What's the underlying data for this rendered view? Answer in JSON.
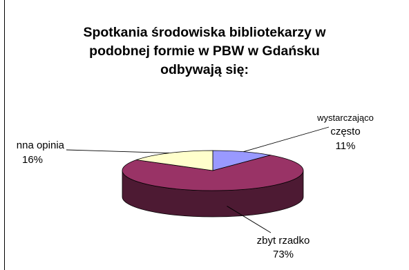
{
  "chart_data": {
    "type": "pie",
    "style": "3d",
    "title_lines": [
      "Spotkania środowiska bibliotekarzy w",
      "podobnej formie w PBW w Gdańsku",
      "odbywają się:"
    ],
    "slices": [
      {
        "label_lines": [
          "wystarczająco",
          "często"
        ],
        "percent_label": "11%",
        "value": 11,
        "color": "#9999ff",
        "side_color": "#4d4d80"
      },
      {
        "label_lines": [
          "zbyt rzadko"
        ],
        "percent_label": "73%",
        "value": 73,
        "color": "#993366",
        "side_color": "#4d1a33"
      },
      {
        "label_lines": [
          "nna opinia"
        ],
        "percent_label": "16%",
        "value": 16,
        "color": "#ffffcc",
        "side_color": "#808066"
      }
    ],
    "legend": "none",
    "grid": false
  }
}
